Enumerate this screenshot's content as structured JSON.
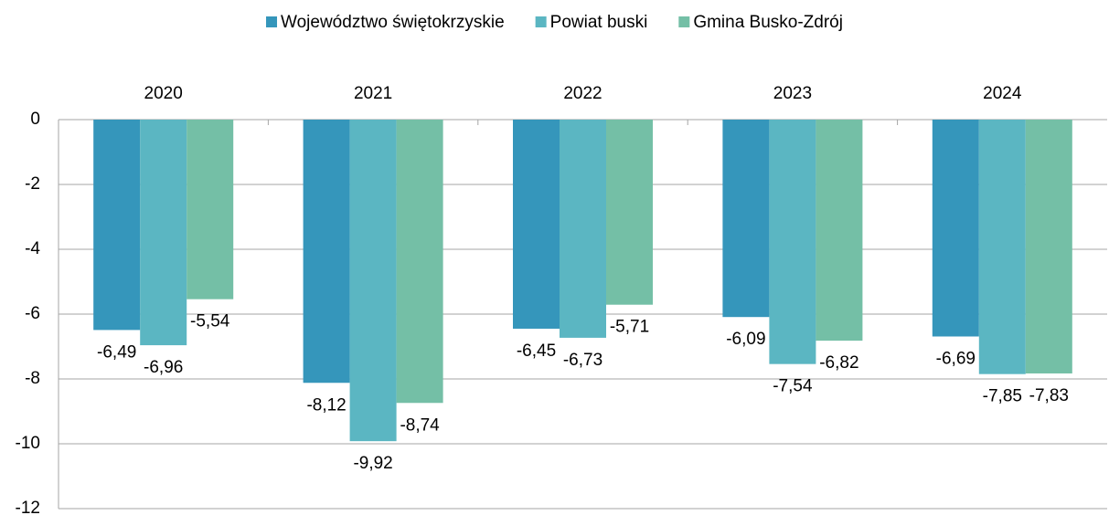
{
  "chart_data": {
    "type": "bar",
    "categories": [
      "2020",
      "2021",
      "2022",
      "2023",
      "2024"
    ],
    "series": [
      {
        "name": "Województwo świętokrzyskie",
        "color": "#3596bb",
        "values": [
          -6.49,
          -8.12,
          -6.45,
          -6.09,
          -6.69
        ],
        "value_labels": [
          "-6,49",
          "-8,12",
          "-6,45",
          "-6,09",
          "-6,69"
        ]
      },
      {
        "name": "Powiat buski",
        "color": "#5bb6c2",
        "values": [
          -6.96,
          -9.92,
          -6.73,
          -7.54,
          -7.85
        ],
        "value_labels": [
          "-6,96",
          "-9,92",
          "-6,73",
          "-7,54",
          "-7,85"
        ]
      },
      {
        "name": "Gmina Busko-Zdrój",
        "color": "#74bfa6",
        "values": [
          -5.54,
          -8.74,
          -5.71,
          -6.82,
          -7.83
        ],
        "value_labels": [
          "-5,54",
          "-8,74",
          "-5,71",
          "-6,82",
          "-7,83"
        ]
      }
    ],
    "ylim": [
      -12,
      0
    ],
    "yticks": [
      0,
      -2,
      -4,
      -6,
      -8,
      -10,
      -12
    ],
    "grid": true,
    "legend": "top"
  }
}
